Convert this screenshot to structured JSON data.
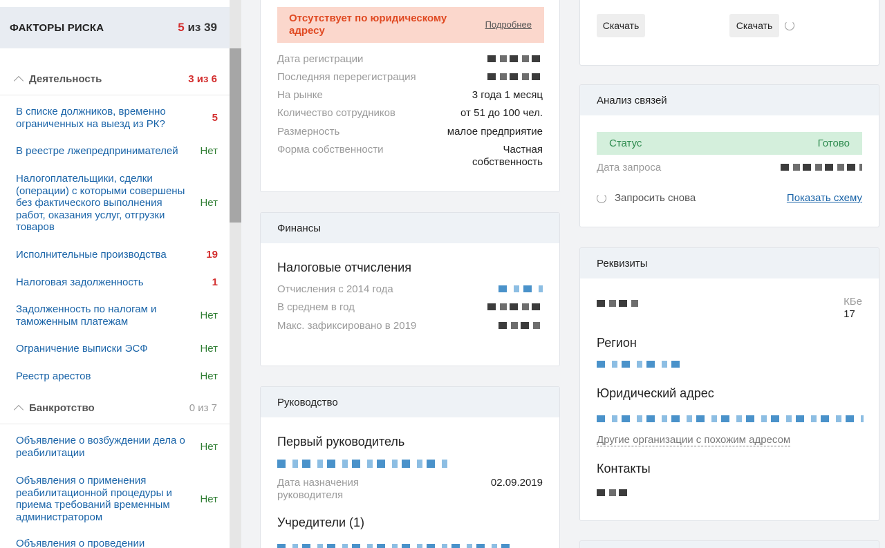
{
  "risk": {
    "title": "ФАКТОРЫ РИСКА",
    "count_red": "5",
    "count_rest": " из 39",
    "sections": [
      {
        "label": "Деятельность",
        "count": "3 из 6"
      },
      {
        "label": "Банкротство",
        "count": "0 из 7"
      }
    ],
    "items": [
      {
        "label": "В списке должников, временно ограниченных на выезд из РК?",
        "value": "5"
      },
      {
        "label": "В реестре лжепредпринимателей",
        "value": "Нет"
      },
      {
        "label": "Налогоплательщики, сделки (операции) с которыми совершены без фактического выполнения работ, оказания услуг, отгрузки товаров",
        "value": "Нет"
      },
      {
        "label": "Исполнительные производства",
        "value": "19"
      },
      {
        "label": "Налоговая задолженность",
        "value": "1"
      },
      {
        "label": "Задолженность по налогам и таможенным платежам",
        "value": "Нет"
      },
      {
        "label": "Ограничение выписки ЭСФ",
        "value": "Нет"
      },
      {
        "label": "Реестр арестов",
        "value": "Нет"
      },
      {
        "label": "Объявление о возбуждении дела о реабилитации",
        "value": "Нет"
      },
      {
        "label": "Объявления о применения реабилитационной процедуры и приема требований временным администратором",
        "value": "Нет"
      },
      {
        "label": "Объявления о проведении",
        "value": ""
      }
    ]
  },
  "company": {
    "alert_text": "Отсутствует по юридическому адресу",
    "alert_link": "Подробнее",
    "rows": [
      {
        "k": "Дата регистрации",
        "v": ""
      },
      {
        "k": "Последняя перерегистрация",
        "v": ""
      },
      {
        "k": "На рынке",
        "v": "3 года 1 месяц"
      },
      {
        "k": "Количество сотрудников",
        "v": "от 51 до 100 чел."
      },
      {
        "k": "Размерность",
        "v": "малое предприятие"
      },
      {
        "k": "Форма собственности",
        "v": "Частная собственность"
      }
    ]
  },
  "finance": {
    "title": "Финансы",
    "heading": "Налоговые отчисления",
    "rows": [
      {
        "k": "Отчисления с 2014 года"
      },
      {
        "k": "В среднем в год"
      },
      {
        "k": "Макс. зафиксировано в 2019"
      }
    ]
  },
  "management": {
    "title": "Руководство",
    "heading": "Первый руководитель",
    "appoint_label": "Дата назначения руководителя",
    "appoint_date": "02.09.2019",
    "founders": "Учредители (1)"
  },
  "downloads": {
    "btn1": "Скачать",
    "btn2": "Скачать"
  },
  "links": {
    "title": "Анализ связей",
    "status_label": "Статус",
    "status_value": "Готово",
    "date_label": "Дата запроса",
    "retry": "Запросить снова",
    "show_scheme": "Показать схему"
  },
  "requisites": {
    "title": "Реквизиты",
    "kbe_label": "КБе",
    "kbe_value": "17",
    "region": "Регион",
    "address": "Юридический адрес",
    "similar": "Другие организации с похожим адресом",
    "contacts": "Контакты"
  },
  "colors": {
    "accent_red": "#d32f2f",
    "link_blue": "#1a64a8",
    "ok_green": "#2e7d32",
    "alert_bg": "#fbd7cc"
  }
}
